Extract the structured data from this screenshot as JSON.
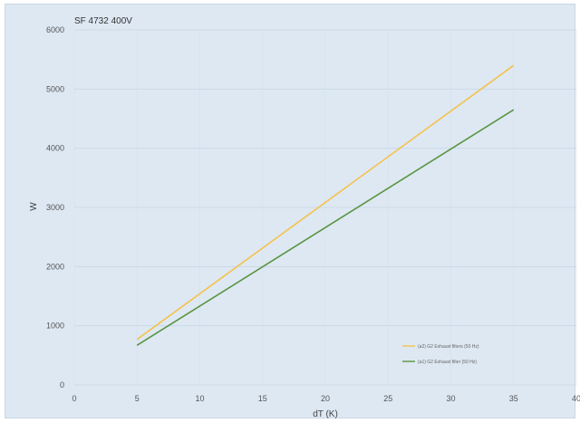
{
  "chart_data": {
    "type": "line",
    "title": "SF 4732  400V",
    "xlabel": "dT (K)",
    "ylabel": "W",
    "xlim": [
      0,
      40
    ],
    "ylim": [
      0,
      6000
    ],
    "x_ticks": [
      0,
      5,
      10,
      15,
      20,
      25,
      30,
      35,
      40
    ],
    "y_ticks": [
      0,
      1000,
      2000,
      3000,
      4000,
      5000,
      6000
    ],
    "grid": true,
    "legend_position": "bottom-right",
    "series": [
      {
        "name": "(a2) G2 Exhaust filters (50 Hz)",
        "color": "#f5c24c",
        "x": [
          5,
          35
        ],
        "y": [
          770,
          5400
        ]
      },
      {
        "name": "(a1) G2 Exhaust filter (50 Hz)",
        "color": "#5a9440",
        "x": [
          5,
          35
        ],
        "y": [
          670,
          4650
        ]
      }
    ]
  }
}
